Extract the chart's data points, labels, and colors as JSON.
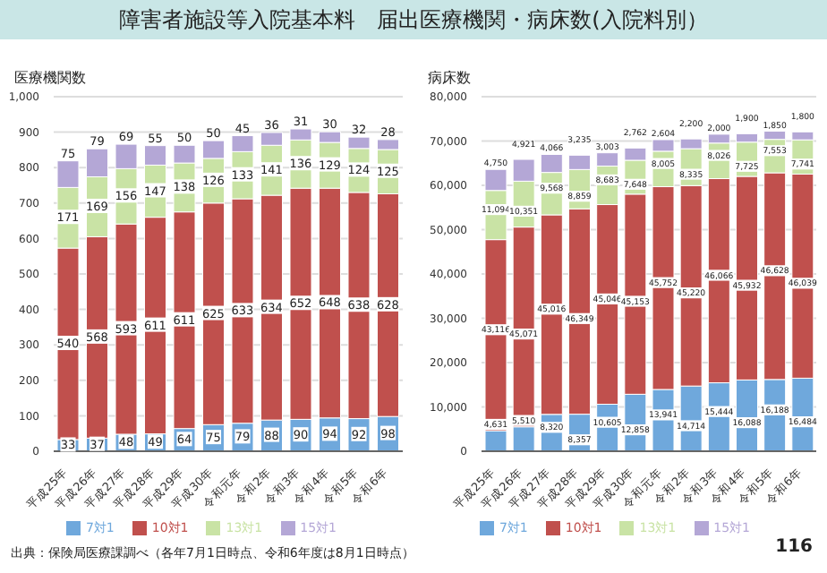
{
  "chart_data": [
    {
      "type": "bar",
      "title": "障害者施設等入院基本料　届出医療機関・病床数(入院料別）",
      "ylabel": "医療機関数",
      "stacked": true,
      "data_labels": true,
      "grid": "y",
      "legend": "bottom",
      "categories": [
        "平成25年",
        "平成26年",
        "平成27年",
        "平成28年",
        "平成29年",
        "平成30年",
        "令和元年",
        "令和2年",
        "令和3年",
        "令和4年",
        "令和5年",
        "令和6年"
      ],
      "ylim": [
        0,
        1000
      ],
      "yticks": [
        0,
        100,
        200,
        300,
        400,
        500,
        600,
        700,
        800,
        900,
        {
          "value": 1000,
          "label": "1,000"
        }
      ],
      "series": [
        {
          "name": "7対1",
          "color": "#6fa8dc",
          "values": [
            33,
            37,
            48,
            49,
            64,
            75,
            79,
            88,
            90,
            94,
            92,
            98
          ]
        },
        {
          "name": "10対1",
          "color": "#c0504d",
          "values": [
            540,
            568,
            593,
            611,
            611,
            625,
            633,
            634,
            652,
            648,
            638,
            628
          ]
        },
        {
          "name": "13対1",
          "color": "#c9e3a5",
          "values": [
            171,
            169,
            156,
            147,
            138,
            126,
            133,
            141,
            136,
            129,
            124,
            125
          ]
        },
        {
          "name": "15対1",
          "color": "#b4a7d6",
          "values": [
            75,
            79,
            69,
            55,
            50,
            50,
            45,
            36,
            31,
            30,
            32,
            28
          ]
        }
      ],
      "annotations": [
        "出典：保険局医療課調べ（各年7月1日時点、令和6年度は8月1日時点）"
      ]
    },
    {
      "type": "bar",
      "ylabel": "病床数",
      "stacked": true,
      "grid": "y",
      "legend": "bottom",
      "categories": [
        "平成25年",
        "平成26年",
        "平成27年",
        "平成28年",
        "平成29年",
        "平成30年",
        "令和元年",
        "令和2年",
        "令和3年",
        "令和4年",
        "令和5年",
        "令和6年"
      ],
      "ylim": [
        0,
        80000
      ],
      "yticks": [
        0,
        {
          "value": 10000,
          "label": "10,000"
        },
        {
          "value": 20000,
          "label": "20,000"
        },
        {
          "value": 30000,
          "label": "30,000"
        },
        {
          "value": 40000,
          "label": "40,000"
        },
        {
          "value": 50000,
          "label": "50,000"
        },
        {
          "value": 60000,
          "label": "60,000"
        },
        {
          "value": 70000,
          "label": "70,000"
        },
        {
          "value": 80000,
          "label": "80,000"
        }
      ],
      "series": [
        {
          "name": "7対1",
          "color": "#6fa8dc",
          "values": [
            4631,
            5510,
            8320,
            8357,
            10605,
            12858,
            13941,
            14714,
            15444,
            16088,
            16188,
            16484
          ],
          "value_labels": [
            "4,631",
            "5,510",
            "8,320",
            "8,357",
            "10,605",
            "12,858",
            "13,941",
            "14,714",
            "15,444",
            "16,088",
            "16,188",
            "16,484"
          ]
        },
        {
          "name": "10対1",
          "color": "#c0504d",
          "values": [
            43116,
            45071,
            45016,
            46349,
            45046,
            45153,
            45752,
            45220,
            46066,
            45932,
            46628,
            46039
          ],
          "value_labels": [
            "43,116",
            "45,071",
            "45,016",
            "46,349",
            "45,046",
            "45,153",
            "45,752",
            "45,220",
            "46,066",
            "45,932",
            "46,628",
            "46,039"
          ]
        },
        {
          "name": "13対1",
          "color": "#c9e3a5",
          "values": [
            11094,
            10351,
            9568,
            8859,
            8683,
            7648,
            8005,
            8335,
            8026,
            7725,
            7553,
            7741
          ],
          "value_labels": [
            "11,094",
            "10,351",
            "9,568",
            "8,859",
            "8,683",
            "7,648",
            "8,005",
            "8,335",
            "8,026",
            "7,725",
            "7,553",
            "7,741"
          ]
        },
        {
          "name": "15対1",
          "color": "#b4a7d6",
          "values": [
            4750,
            4921,
            4066,
            3235,
            3003,
            2762,
            2604,
            2200,
            2000,
            1900,
            1850,
            1800
          ],
          "value_labels": [
            "4,750",
            "4,921",
            "4,066",
            "3,235",
            "3,003",
            "2,762",
            "2,604",
            "2,200",
            "2,000",
            "1,900",
            "1,850",
            "1,800"
          ]
        }
      ],
      "annotations": [
        "116"
      ]
    }
  ]
}
